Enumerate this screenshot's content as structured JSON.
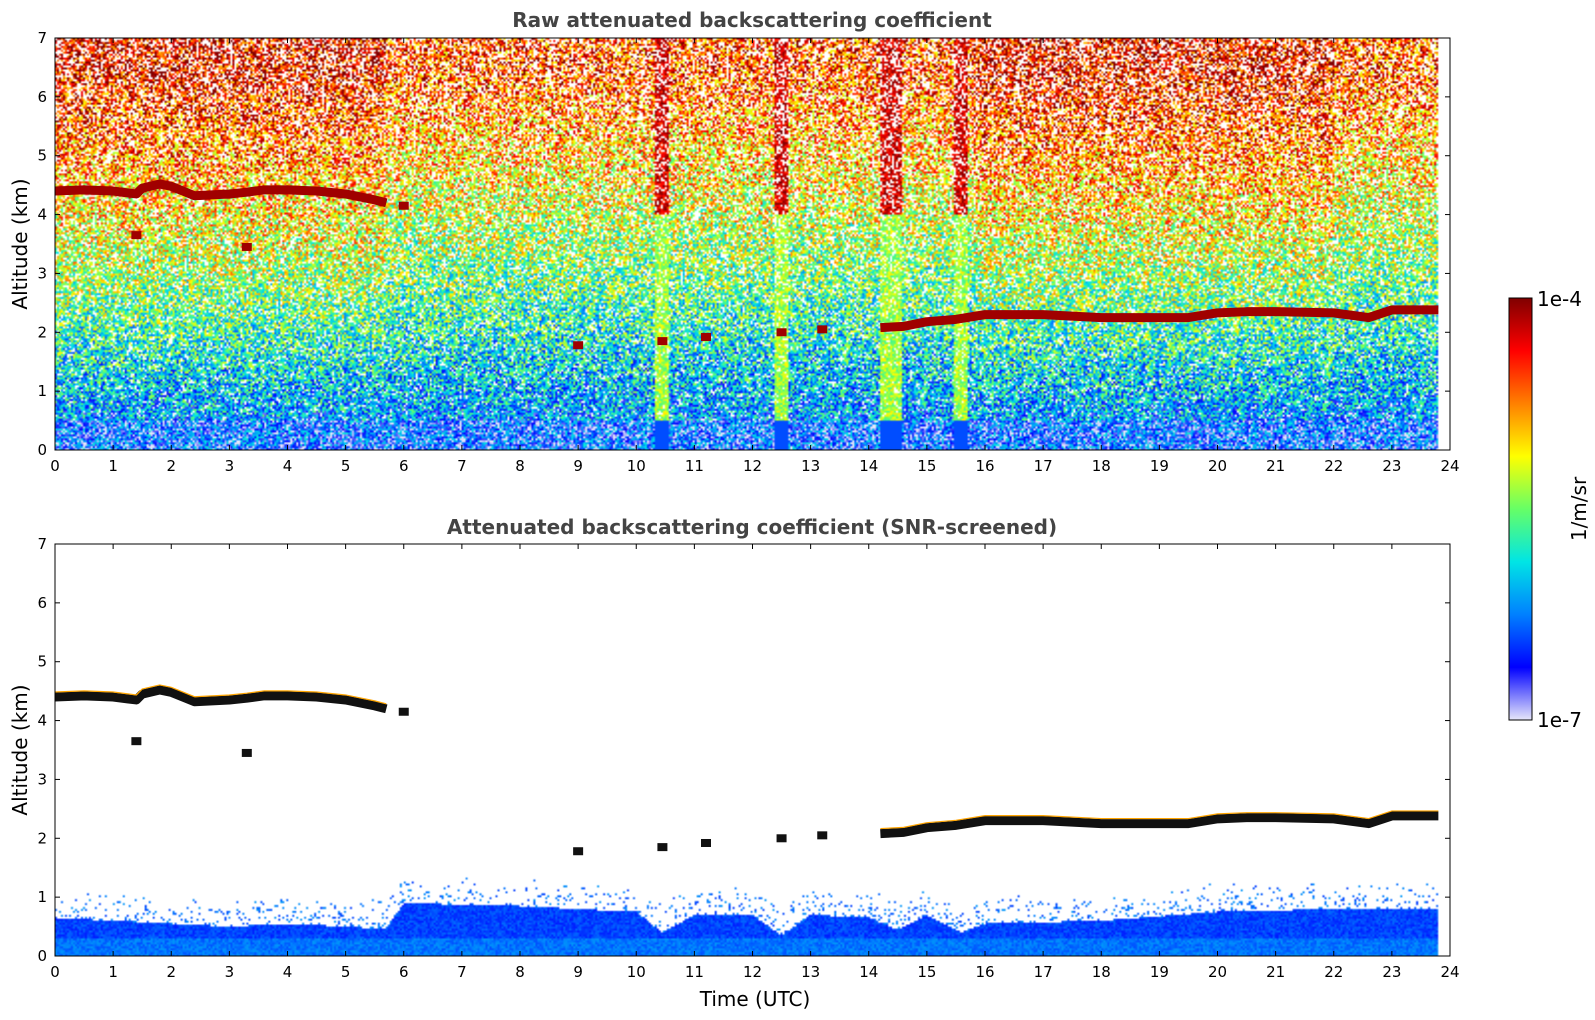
{
  "chart_data": [
    {
      "type": "heatmap",
      "title": "Raw attenuated backscattering coefficient",
      "xlabel": "",
      "ylabel": "Altitude (km)",
      "xlim": [
        0,
        24
      ],
      "ylim": [
        0,
        7
      ],
      "xticks": [
        "0",
        "1",
        "2",
        "3",
        "4",
        "5",
        "6",
        "7",
        "8",
        "9",
        "10",
        "11",
        "12",
        "13",
        "14",
        "15",
        "16",
        "17",
        "18",
        "19",
        "20",
        "21",
        "22",
        "23",
        "24"
      ],
      "yticks": [
        "0",
        "1",
        "2",
        "3",
        "4",
        "5",
        "6",
        "7"
      ],
      "data_end_time": 23.8,
      "cloud_layers": [
        {
          "time": [
            0.0,
            0.5,
            1.0,
            1.4,
            1.5,
            1.8,
            2.0,
            2.4,
            3.0,
            3.3,
            3.6,
            4.0,
            4.5,
            5.0,
            5.5,
            5.7
          ],
          "altitude": [
            4.4,
            4.42,
            4.4,
            4.35,
            4.45,
            4.52,
            4.48,
            4.32,
            4.35,
            4.38,
            4.42,
            4.42,
            4.4,
            4.35,
            4.25,
            4.2
          ]
        },
        {
          "time": [
            14.2,
            14.6,
            15.0,
            15.5,
            16.0,
            17.0,
            18.0,
            19.0,
            19.5,
            20.0,
            20.5,
            21.0,
            22.0,
            22.6,
            23.0,
            23.8
          ],
          "altitude": [
            2.08,
            2.1,
            2.18,
            2.22,
            2.3,
            2.3,
            2.25,
            2.25,
            2.25,
            2.33,
            2.35,
            2.35,
            2.33,
            2.25,
            2.38,
            2.38
          ]
        }
      ],
      "cloud_patches": [
        {
          "time": 1.4,
          "altitude": 3.65
        },
        {
          "time": 3.3,
          "altitude": 3.45
        },
        {
          "time": 6.0,
          "altitude": 4.15
        },
        {
          "time": 9.0,
          "altitude": 1.78
        },
        {
          "time": 10.45,
          "altitude": 1.85
        },
        {
          "time": 11.2,
          "altitude": 1.92
        },
        {
          "time": 12.5,
          "altitude": 2.0
        },
        {
          "time": 13.2,
          "altitude": 2.05
        }
      ],
      "precipitation_streaks": [
        10.45,
        12.5,
        14.3,
        14.45,
        15.6
      ]
    },
    {
      "type": "heatmap",
      "title": "Attenuated backscattering coefficient (SNR-screened)",
      "xlabel": "Time (UTC)",
      "ylabel": "Altitude (km)",
      "xlim": [
        0,
        24
      ],
      "ylim": [
        0,
        7
      ],
      "xticks": [
        "0",
        "1",
        "2",
        "3",
        "4",
        "5",
        "6",
        "7",
        "8",
        "9",
        "10",
        "11",
        "12",
        "13",
        "14",
        "15",
        "16",
        "17",
        "18",
        "19",
        "20",
        "21",
        "22",
        "23",
        "24"
      ],
      "yticks": [
        "0",
        "1",
        "2",
        "3",
        "4",
        "5",
        "6",
        "7"
      ],
      "data_end_time": 23.8,
      "boundary_layer_top_km": {
        "time": [
          0,
          1,
          2,
          3,
          4,
          5,
          5.7,
          6,
          8,
          10,
          10.45,
          11,
          12,
          12.5,
          13,
          14,
          14.5,
          15,
          15.6,
          16,
          18,
          20,
          22,
          23.8
        ],
        "altitude": [
          0.65,
          0.6,
          0.55,
          0.5,
          0.55,
          0.5,
          0.45,
          0.9,
          0.85,
          0.75,
          0.4,
          0.7,
          0.7,
          0.35,
          0.7,
          0.65,
          0.45,
          0.7,
          0.4,
          0.55,
          0.6,
          0.75,
          0.8,
          0.8
        ]
      }
    }
  ],
  "colorbar": {
    "label": "1/m/sr",
    "max_label": "1e-4",
    "min_label": "1e-7",
    "colormap": [
      "#e6e6fa",
      "#0000ff",
      "#0080ff",
      "#00e5e5",
      "#66ff66",
      "#ffff00",
      "#ff8000",
      "#ff0000",
      "#800000"
    ]
  }
}
